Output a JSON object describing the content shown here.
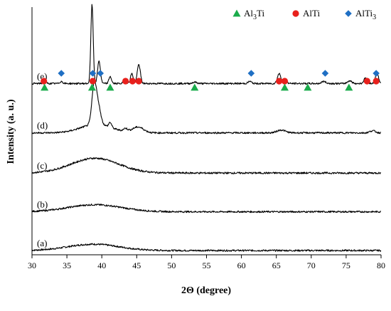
{
  "chart_data": {
    "type": "line",
    "xlabel": "2Θ (degree)",
    "ylabel": "Intensity (a. u.)",
    "xlim": [
      30,
      80
    ],
    "x_ticks": [
      "30",
      "35",
      "40",
      "45",
      "50",
      "55",
      "60",
      "65",
      "70",
      "75",
      "80"
    ],
    "grid": false,
    "legend_position": "top-right",
    "legend": [
      {
        "key": "al3ti",
        "label_main": "Al",
        "label_sub": "3",
        "label_tail": "Ti",
        "marker": "triangle",
        "color": "#1aab4b"
      },
      {
        "key": "alti",
        "label_main": "AlTi",
        "label_sub": "",
        "label_tail": "",
        "marker": "circle",
        "color": "#e8201c"
      },
      {
        "key": "alti3",
        "label_main": "AlTi",
        "label_sub": "3",
        "label_tail": "",
        "marker": "diamond",
        "color": "#1f6fc4"
      }
    ],
    "series": [
      {
        "name": "(a)",
        "baseline": 0.0,
        "noise": 0.012,
        "peaks": [
          {
            "x": 38.8,
            "h": 0.09,
            "w": 3.6
          }
        ]
      },
      {
        "name": "(b)",
        "baseline": 0.55,
        "noise": 0.012,
        "peaks": [
          {
            "x": 39.0,
            "h": 0.1,
            "w": 3.8
          }
        ]
      },
      {
        "name": "(c)",
        "baseline": 1.1,
        "noise": 0.013,
        "peaks": [
          {
            "x": 39.0,
            "h": 0.21,
            "w": 3.4
          }
        ]
      },
      {
        "name": "(d)",
        "baseline": 1.67,
        "noise": 0.012,
        "peaks": [
          {
            "x": 38.9,
            "h": 0.55,
            "w": 0.32
          },
          {
            "x": 39.5,
            "h": 0.25,
            "w": 0.35
          },
          {
            "x": 39.2,
            "h": 0.12,
            "w": 2.2
          },
          {
            "x": 41.2,
            "h": 0.07,
            "w": 0.2
          },
          {
            "x": 43.4,
            "h": 0.04,
            "w": 0.3
          },
          {
            "x": 45.2,
            "h": 0.08,
            "w": 0.8
          },
          {
            "x": 65.7,
            "h": 0.04,
            "w": 0.6
          },
          {
            "x": 78.8,
            "h": 0.03,
            "w": 0.4
          }
        ]
      },
      {
        "name": "(e)",
        "baseline": 2.37,
        "noise": 0.012,
        "peaks": [
          {
            "x": 31.8,
            "h": 0.04,
            "w": 0.2
          },
          {
            "x": 34.2,
            "h": 0.03,
            "w": 0.2
          },
          {
            "x": 38.6,
            "h": 1.12,
            "w": 0.17
          },
          {
            "x": 39.6,
            "h": 0.32,
            "w": 0.2
          },
          {
            "x": 41.2,
            "h": 0.1,
            "w": 0.18
          },
          {
            "x": 43.3,
            "h": 0.06,
            "w": 0.2
          },
          {
            "x": 44.3,
            "h": 0.14,
            "w": 0.2
          },
          {
            "x": 45.3,
            "h": 0.27,
            "w": 0.22
          },
          {
            "x": 53.3,
            "h": 0.02,
            "w": 0.3
          },
          {
            "x": 61.2,
            "h": 0.03,
            "w": 0.25
          },
          {
            "x": 65.4,
            "h": 0.14,
            "w": 0.25
          },
          {
            "x": 66.2,
            "h": 0.06,
            "w": 0.25
          },
          {
            "x": 71.8,
            "h": 0.03,
            "w": 0.3
          },
          {
            "x": 75.5,
            "h": 0.04,
            "w": 0.3
          },
          {
            "x": 77.8,
            "h": 0.08,
            "w": 0.25
          },
          {
            "x": 79.4,
            "h": 0.16,
            "w": 0.22
          }
        ]
      }
    ],
    "phase_markers": [
      {
        "phase": "alti",
        "x": 31.7,
        "level": 2
      },
      {
        "phase": "al3ti",
        "x": 31.8,
        "level": 1
      },
      {
        "phase": "alti3",
        "x": 34.2,
        "level": 3
      },
      {
        "phase": "alti3",
        "x": 38.7,
        "level": 3
      },
      {
        "phase": "alti",
        "x": 38.7,
        "level": 2
      },
      {
        "phase": "al3ti",
        "x": 38.6,
        "level": 1
      },
      {
        "phase": "alti3",
        "x": 39.8,
        "level": 3
      },
      {
        "phase": "al3ti",
        "x": 41.2,
        "level": 1
      },
      {
        "phase": "alti",
        "x": 43.4,
        "level": 2
      },
      {
        "phase": "alti",
        "x": 44.4,
        "level": 2
      },
      {
        "phase": "alti",
        "x": 45.3,
        "level": 2
      },
      {
        "phase": "al3ti",
        "x": 53.3,
        "level": 1
      },
      {
        "phase": "alti3",
        "x": 61.4,
        "level": 3
      },
      {
        "phase": "alti",
        "x": 65.4,
        "level": 2
      },
      {
        "phase": "alti",
        "x": 66.2,
        "level": 2
      },
      {
        "phase": "al3ti",
        "x": 66.2,
        "level": 1
      },
      {
        "phase": "al3ti",
        "x": 69.5,
        "level": 1
      },
      {
        "phase": "alti3",
        "x": 72.0,
        "level": 3
      },
      {
        "phase": "al3ti",
        "x": 75.4,
        "level": 1
      },
      {
        "phase": "alti",
        "x": 78.0,
        "level": 2
      },
      {
        "phase": "alti",
        "x": 79.3,
        "level": 2
      },
      {
        "phase": "alti3",
        "x": 79.3,
        "level": 3
      }
    ]
  }
}
